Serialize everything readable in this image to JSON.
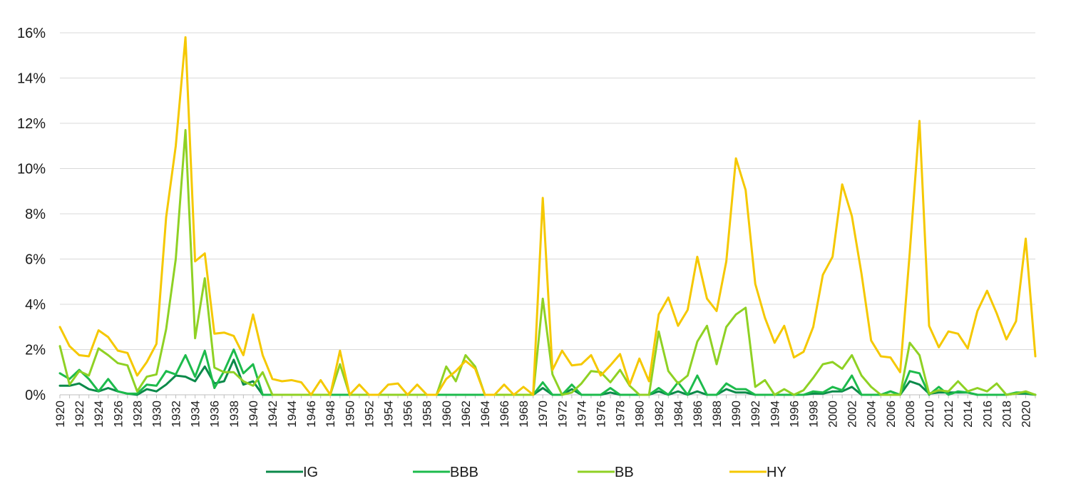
{
  "chart_data": {
    "type": "line",
    "title": "",
    "xlabel": "",
    "ylabel": "",
    "x": [
      1920,
      1921,
      1922,
      1923,
      1924,
      1925,
      1926,
      1927,
      1928,
      1929,
      1930,
      1931,
      1932,
      1933,
      1934,
      1935,
      1936,
      1937,
      1938,
      1939,
      1940,
      1941,
      1942,
      1943,
      1944,
      1945,
      1946,
      1947,
      1948,
      1949,
      1950,
      1951,
      1952,
      1953,
      1954,
      1955,
      1956,
      1957,
      1958,
      1959,
      1960,
      1961,
      1962,
      1963,
      1964,
      1965,
      1966,
      1967,
      1968,
      1969,
      1970,
      1971,
      1972,
      1973,
      1974,
      1975,
      1976,
      1977,
      1978,
      1979,
      1980,
      1981,
      1982,
      1983,
      1984,
      1985,
      1986,
      1987,
      1988,
      1989,
      1990,
      1991,
      1992,
      1993,
      1994,
      1995,
      1996,
      1997,
      1998,
      1999,
      2000,
      2001,
      2002,
      2003,
      2004,
      2005,
      2006,
      2007,
      2008,
      2009,
      2010,
      2011,
      2012,
      2013,
      2014,
      2015,
      2016,
      2017,
      2018,
      2019,
      2020,
      2021
    ],
    "xlim": [
      1920,
      2021
    ],
    "ylim": [
      0,
      16
    ],
    "yticks": [
      0,
      2,
      4,
      6,
      8,
      10,
      12,
      14,
      16
    ],
    "ytick_labels": [
      "0%",
      "2%",
      "4%",
      "6%",
      "8%",
      "10%",
      "12%",
      "14%",
      "16%"
    ],
    "xticks": [
      1920,
      1922,
      1924,
      1926,
      1928,
      1930,
      1932,
      1934,
      1936,
      1938,
      1940,
      1942,
      1944,
      1946,
      1948,
      1950,
      1952,
      1954,
      1956,
      1958,
      1960,
      1962,
      1964,
      1966,
      1968,
      1970,
      1972,
      1974,
      1976,
      1978,
      1980,
      1982,
      1984,
      1986,
      1988,
      1990,
      1992,
      1994,
      1996,
      1998,
      2000,
      2002,
      2004,
      2006,
      2008,
      2010,
      2012,
      2014,
      2016,
      2018,
      2020
    ],
    "grid": "horizontal",
    "legend_position": "bottom",
    "series": [
      {
        "name": "IG",
        "color": "#0b8a4a",
        "values": [
          0.4,
          0.4,
          0.5,
          0.25,
          0.15,
          0.3,
          0.15,
          0.05,
          0.0,
          0.25,
          0.15,
          0.45,
          0.85,
          0.8,
          0.6,
          1.25,
          0.5,
          0.6,
          1.55,
          0.45,
          0.6,
          0.0,
          0.0,
          0.0,
          0.0,
          0.0,
          0.0,
          0.0,
          0.0,
          0.0,
          0.0,
          0.0,
          0.0,
          0.0,
          0.0,
          0.0,
          0.0,
          0.0,
          0.0,
          0.0,
          0.0,
          0.0,
          0.0,
          0.0,
          0.0,
          0.0,
          0.0,
          0.0,
          0.0,
          0.0,
          0.3,
          0.0,
          0.0,
          0.25,
          0.0,
          0.0,
          0.0,
          0.1,
          0.0,
          0.0,
          0.0,
          0.0,
          0.15,
          0.0,
          0.15,
          0.0,
          0.15,
          0.0,
          0.0,
          0.25,
          0.1,
          0.1,
          0.0,
          0.0,
          0.0,
          0.0,
          0.0,
          0.0,
          0.05,
          0.05,
          0.15,
          0.15,
          0.35,
          0.0,
          0.0,
          0.0,
          0.15,
          0.0,
          0.6,
          0.45,
          0.05,
          0.1,
          0.1,
          0.1,
          0.1,
          0.0,
          0.0,
          0.0,
          0.0,
          0.05,
          0.05,
          0.0
        ]
      },
      {
        "name": "BBB",
        "color": "#1dbb4c",
        "values": [
          0.95,
          0.7,
          1.1,
          0.7,
          0.15,
          0.7,
          0.15,
          0.05,
          0.05,
          0.45,
          0.4,
          1.05,
          0.9,
          1.75,
          0.8,
          1.95,
          0.3,
          1.05,
          2.0,
          0.95,
          1.35,
          0.0,
          0.0,
          0.0,
          0.0,
          0.0,
          0.0,
          0.0,
          0.0,
          0.0,
          0.0,
          0.0,
          0.0,
          0.0,
          0.0,
          0.0,
          0.0,
          0.0,
          0.0,
          0.0,
          0.0,
          0.0,
          0.0,
          0.0,
          0.0,
          0.0,
          0.0,
          0.0,
          0.0,
          0.0,
          0.55,
          0.0,
          0.0,
          0.45,
          0.0,
          0.0,
          0.0,
          0.3,
          0.0,
          0.0,
          0.0,
          0.0,
          0.3,
          0.0,
          0.55,
          0.0,
          0.85,
          0.0,
          0.0,
          0.5,
          0.25,
          0.25,
          0.0,
          0.0,
          0.0,
          0.0,
          0.0,
          0.0,
          0.15,
          0.1,
          0.35,
          0.2,
          0.85,
          0.0,
          0.0,
          0.0,
          0.15,
          0.0,
          1.05,
          0.95,
          0.0,
          0.35,
          0.0,
          0.15,
          0.1,
          0.0,
          0.0,
          0.0,
          0.0,
          0.1,
          0.1,
          0.0
        ]
      },
      {
        "name": "BB",
        "color": "#8fd124",
        "values": [
          2.15,
          0.45,
          1.05,
          0.85,
          2.05,
          1.75,
          1.4,
          1.3,
          0.15,
          0.8,
          0.9,
          2.9,
          6.0,
          11.7,
          2.5,
          5.15,
          1.2,
          1.0,
          1.0,
          0.6,
          0.4,
          1.0,
          0.0,
          0.0,
          0.0,
          0.0,
          0.0,
          0.0,
          0.0,
          1.35,
          0.0,
          0.0,
          0.0,
          0.0,
          0.0,
          0.0,
          0.0,
          0.0,
          0.0,
          0.0,
          1.25,
          0.6,
          1.75,
          1.25,
          0.0,
          0.0,
          0.0,
          0.0,
          0.0,
          0.0,
          4.25,
          0.9,
          0.0,
          0.1,
          0.5,
          1.05,
          1.0,
          0.55,
          1.1,
          0.4,
          0.0,
          0.0,
          2.8,
          1.05,
          0.5,
          0.85,
          2.35,
          3.05,
          1.35,
          3.0,
          3.55,
          3.85,
          0.35,
          0.65,
          0.0,
          0.25,
          0.0,
          0.2,
          0.75,
          1.35,
          1.45,
          1.15,
          1.75,
          0.85,
          0.35,
          0.0,
          0.0,
          0.0,
          2.3,
          1.75,
          0.05,
          0.2,
          0.15,
          0.6,
          0.15,
          0.3,
          0.15,
          0.5,
          0.0,
          0.05,
          0.15,
          0.0
        ]
      },
      {
        "name": "HY",
        "color": "#f5c800",
        "values": [
          3.0,
          2.15,
          1.75,
          1.7,
          2.85,
          2.55,
          1.95,
          1.85,
          0.85,
          1.45,
          2.25,
          7.85,
          11.0,
          15.8,
          5.9,
          6.25,
          2.7,
          2.75,
          2.6,
          1.75,
          3.55,
          1.75,
          0.7,
          0.6,
          0.65,
          0.55,
          0.0,
          0.65,
          0.0,
          1.95,
          0.0,
          0.45,
          0.0,
          0.0,
          0.45,
          0.5,
          0.0,
          0.45,
          0.0,
          0.0,
          0.7,
          1.05,
          1.5,
          1.15,
          0.0,
          0.0,
          0.45,
          0.0,
          0.35,
          0.0,
          8.7,
          1.1,
          1.95,
          1.3,
          1.35,
          1.75,
          0.85,
          1.3,
          1.8,
          0.45,
          1.6,
          0.6,
          3.55,
          4.3,
          3.05,
          3.75,
          6.1,
          4.25,
          3.7,
          5.9,
          10.45,
          9.05,
          4.9,
          3.4,
          2.3,
          3.05,
          1.65,
          1.9,
          3.0,
          5.3,
          6.1,
          9.3,
          7.9,
          5.35,
          2.4,
          1.7,
          1.65,
          1.0,
          6.3,
          12.1,
          3.05,
          2.1,
          2.8,
          2.7,
          2.05,
          3.7,
          4.6,
          3.6,
          2.45,
          3.25,
          6.9,
          1.7
        ]
      }
    ]
  }
}
